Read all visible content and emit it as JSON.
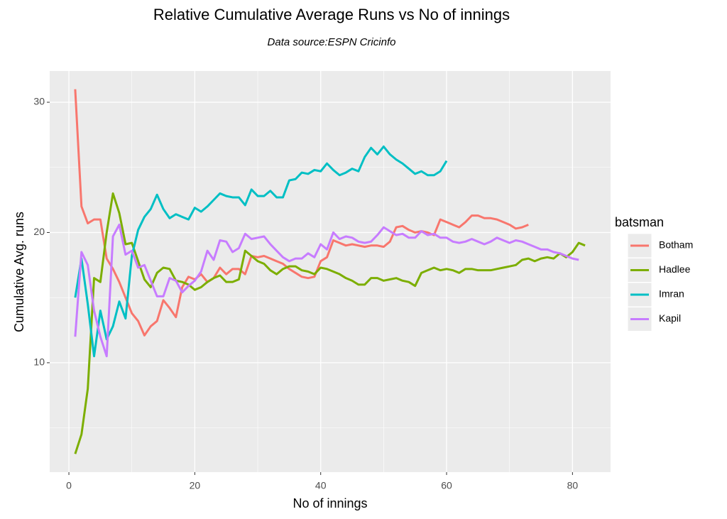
{
  "chart_data": {
    "type": "line",
    "title": "Relative Cumulative Average Runs vs No of innings",
    "subtitle": "Data source:ESPN Cricinfo",
    "x_label": "No of innings",
    "y_label": "Cumulative Avg. runs",
    "legend_title": "batsman",
    "legend_position": "right",
    "grid": true,
    "xlim": [
      -3.05,
      86.05
    ],
    "xticks": [
      0,
      20,
      40,
      60,
      80
    ],
    "ylim": [
      1.6,
      32.4
    ],
    "yticks": [
      10,
      20,
      30
    ],
    "x": [
      1,
      2,
      3,
      4,
      5,
      6,
      7,
      8,
      9,
      10,
      11,
      12,
      13,
      14,
      15,
      16,
      17,
      18,
      19,
      20,
      21,
      22,
      23,
      24,
      25,
      26,
      27,
      28,
      29,
      30,
      31,
      32,
      33,
      34,
      35,
      36,
      37,
      38,
      39,
      40,
      41,
      42,
      43,
      44,
      45,
      46,
      47,
      48,
      49,
      50,
      51,
      52,
      53,
      54,
      55,
      56,
      57,
      58,
      59,
      60,
      61,
      62,
      63,
      64,
      65,
      66,
      67,
      68,
      69,
      70,
      71,
      72,
      73,
      74,
      75,
      76,
      77,
      78,
      79,
      80,
      81,
      82
    ],
    "series": [
      {
        "name": "Botham",
        "color": "#F8766D",
        "values": [
          31,
          22,
          20.7,
          21,
          21,
          18,
          17.2,
          16.2,
          15,
          13.8,
          13.2,
          12.1,
          12.8,
          13.2,
          14.8,
          14.2,
          13.5,
          15.8,
          16.6,
          16.4,
          16.8,
          16.2,
          16.5,
          17.3,
          16.8,
          17.2,
          17.2,
          16.8,
          18.2,
          18.1,
          18.2,
          18.0,
          17.8,
          17.6,
          17.2,
          16.9,
          16.6,
          16.5,
          16.6,
          17.8,
          18.1,
          19.4,
          19.2,
          19.0,
          19.1,
          19.0,
          18.9,
          19.0,
          19.0,
          18.9,
          19.3,
          20.4,
          20.5,
          20.2,
          20.0,
          20.1,
          20.0,
          19.8,
          21.0,
          20.8,
          20.6,
          20.4,
          20.8,
          21.3,
          21.3,
          21.1,
          21.1,
          21.0,
          20.8,
          20.6,
          20.3,
          20.4,
          20.6,
          null,
          null,
          null,
          null,
          null,
          null,
          null,
          null,
          null
        ]
      },
      {
        "name": "Hadlee",
        "color": "#7CAE00",
        "values": [
          3.0,
          4.5,
          8,
          16.5,
          16.2,
          20,
          23,
          21.5,
          19.1,
          19.2,
          17.8,
          16.4,
          15.8,
          16.9,
          17.3,
          17.2,
          16.3,
          16.2,
          16.0,
          15.6,
          15.8,
          16.2,
          16.5,
          16.7,
          16.2,
          16.2,
          16.4,
          18.6,
          18.2,
          17.8,
          17.6,
          17.1,
          16.8,
          17.2,
          17.4,
          17.4,
          17.1,
          17.0,
          16.8,
          17.3,
          17.2,
          17.0,
          16.8,
          16.5,
          16.3,
          16.0,
          16.0,
          16.5,
          16.5,
          16.3,
          16.4,
          16.5,
          16.3,
          16.2,
          15.9,
          16.9,
          17.1,
          17.3,
          17.1,
          17.2,
          17.1,
          16.9,
          17.2,
          17.2,
          17.1,
          17.1,
          17.1,
          17.2,
          17.3,
          17.4,
          17.5,
          17.9,
          18.0,
          17.8,
          18.0,
          18.1,
          18.0,
          18.4,
          18.1,
          18.5,
          19.2,
          19.0
        ]
      },
      {
        "name": "Imran",
        "color": "#00BFC4",
        "values": [
          15,
          18,
          14.5,
          10.5,
          14,
          11.8,
          12.8,
          14.7,
          13.4,
          18.2,
          20.2,
          21.2,
          21.8,
          22.9,
          21.8,
          21.1,
          21.4,
          21.2,
          21.0,
          21.9,
          21.6,
          22.0,
          22.5,
          23.0,
          22.8,
          22.7,
          22.7,
          22.1,
          23.3,
          22.8,
          22.8,
          23.2,
          22.7,
          22.7,
          24.0,
          24.1,
          24.6,
          24.5,
          24.8,
          24.7,
          25.3,
          24.8,
          24.4,
          24.6,
          24.9,
          24.7,
          25.8,
          26.5,
          26.0,
          26.6,
          26.0,
          25.6,
          25.3,
          24.9,
          24.5,
          24.7,
          24.4,
          24.4,
          24.7,
          25.5,
          null,
          null,
          null,
          null,
          null,
          null,
          null,
          null,
          null,
          null,
          null,
          null,
          null,
          null,
          null,
          null,
          null,
          null,
          null,
          null,
          null,
          null
        ]
      },
      {
        "name": "Kapil",
        "color": "#C77CFF",
        "values": [
          12,
          18.5,
          17.5,
          14,
          12,
          10.5,
          19.7,
          20.6,
          18.3,
          18.6,
          17.3,
          17.5,
          16.3,
          15.1,
          15.1,
          16.5,
          16.3,
          15.4,
          15.9,
          16.3,
          17.0,
          18.6,
          17.9,
          19.4,
          19.3,
          18.5,
          18.8,
          19.9,
          19.5,
          19.6,
          19.7,
          19.1,
          18.6,
          18.1,
          17.8,
          18.0,
          18.0,
          18.4,
          18.1,
          19.1,
          18.7,
          20.0,
          19.5,
          19.7,
          19.6,
          19.3,
          19.2,
          19.3,
          19.8,
          20.4,
          20.1,
          19.8,
          19.9,
          19.6,
          19.6,
          20.1,
          19.8,
          19.9,
          19.6,
          19.6,
          19.3,
          19.2,
          19.3,
          19.5,
          19.3,
          19.1,
          19.3,
          19.6,
          19.4,
          19.2,
          19.4,
          19.3,
          19.1,
          18.9,
          18.7,
          18.7,
          18.5,
          18.4,
          18.2,
          18.0,
          17.9,
          null
        ]
      }
    ]
  }
}
